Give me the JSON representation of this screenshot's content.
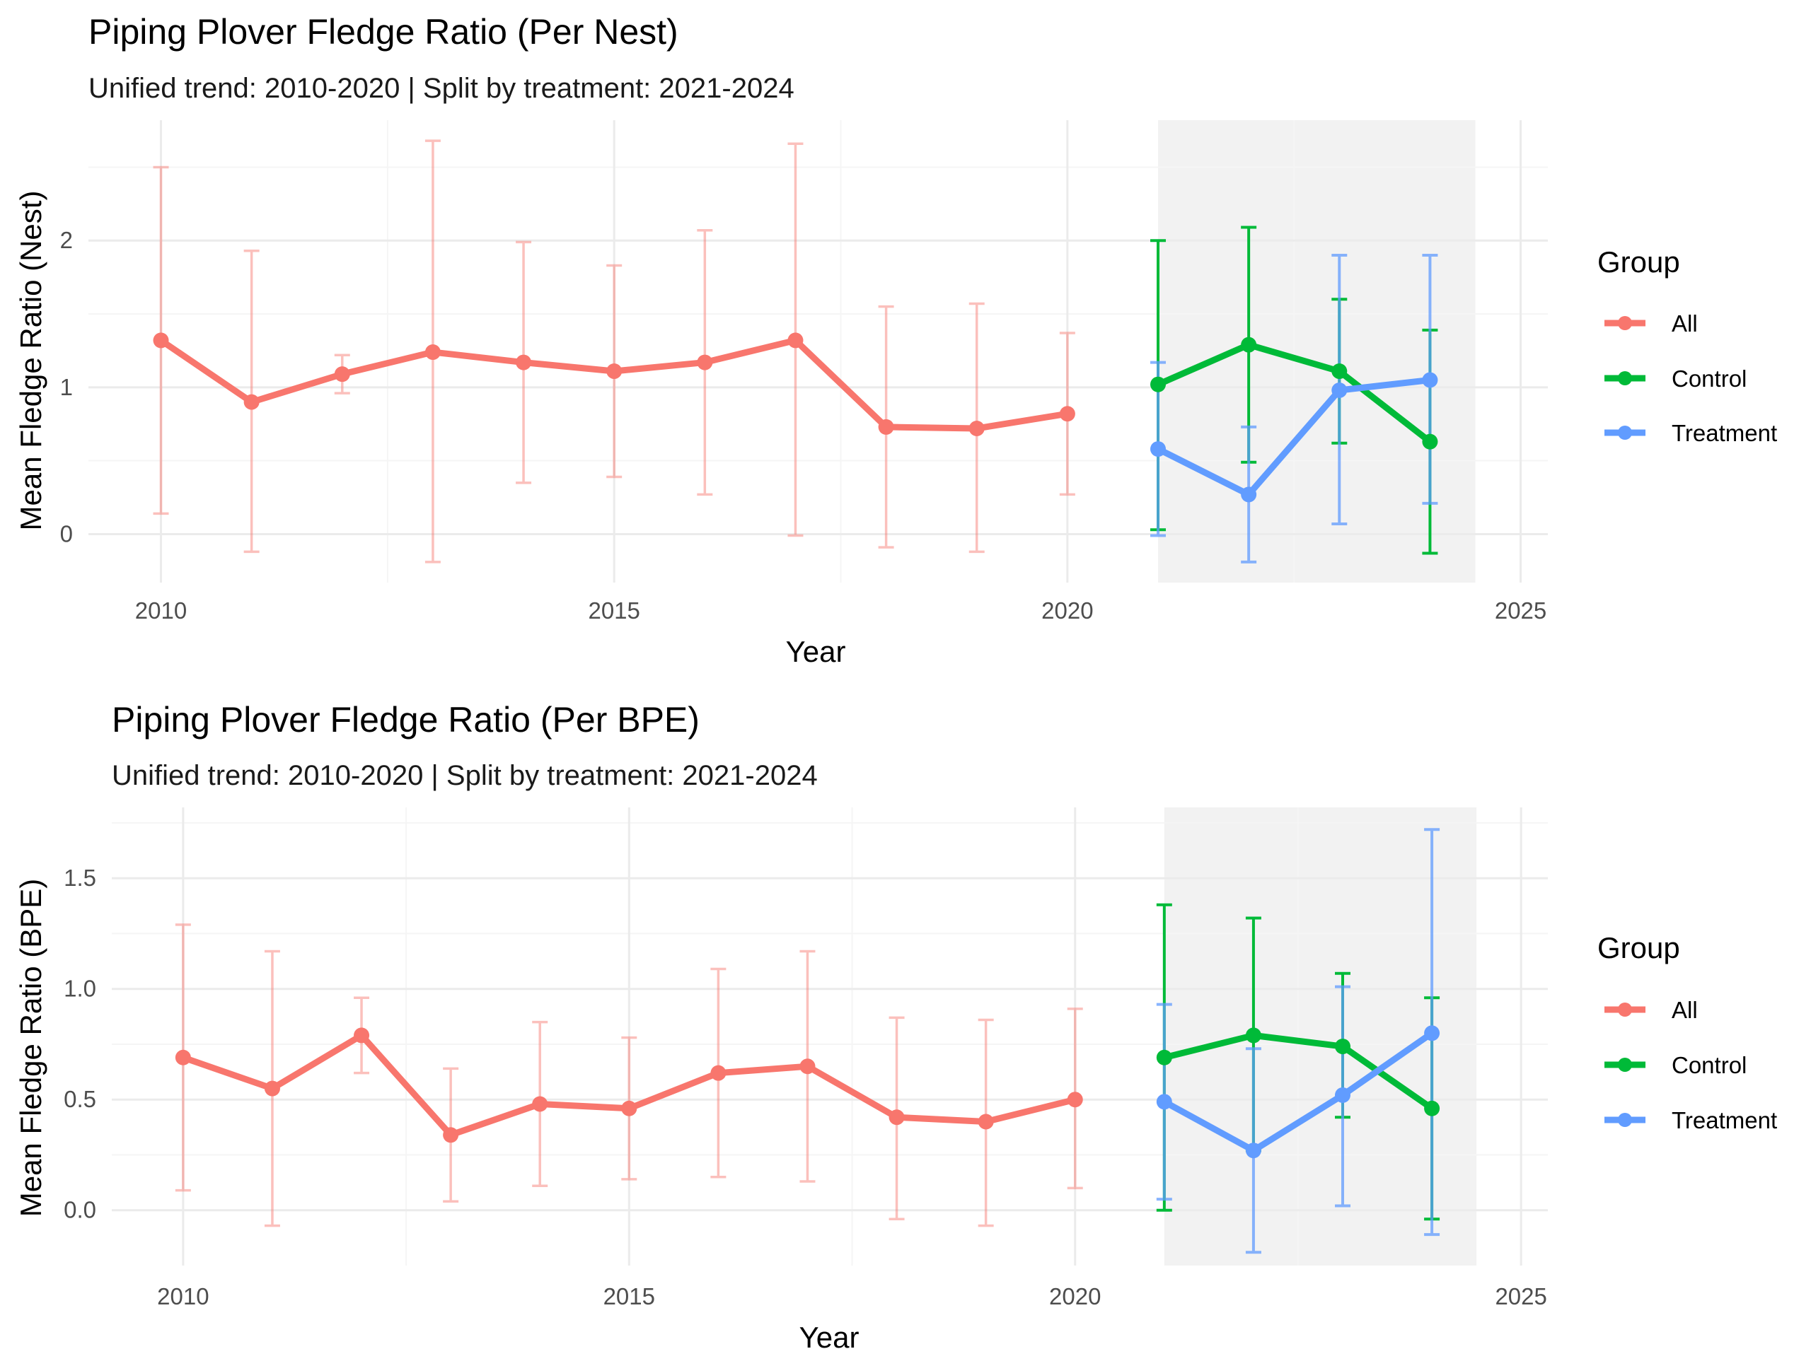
{
  "colors": {
    "All": "#F8766D",
    "Control": "#00BA38",
    "Treatment": "#619CFF",
    "shade": "#f2f2f2",
    "grid_major": "#ebebeb",
    "grid_minor": "#f5f5f5"
  },
  "legend": {
    "title": "Group",
    "items": [
      "All",
      "Control",
      "Treatment"
    ]
  },
  "chart_data": [
    {
      "type": "line",
      "title": "Piping Plover Fledge Ratio (Per Nest)",
      "subtitle": "Unified trend: 2010-2020 | Split by treatment: 2021-2024",
      "xlabel": "Year",
      "ylabel": "Mean Fledge Ratio (Nest)",
      "xlim": [
        2009.2,
        2025.3
      ],
      "ylim": [
        -0.33,
        2.82
      ],
      "x_ticks": [
        2010,
        2015,
        2020,
        2025
      ],
      "y_ticks": [
        0,
        1,
        2
      ],
      "y_tick_labels": [
        "0",
        "1",
        "2"
      ],
      "shaded_region": [
        2021,
        2024.5
      ],
      "grid": true,
      "legend_position": "right",
      "series": [
        {
          "name": "All",
          "x": [
            2010,
            2011,
            2012,
            2013,
            2014,
            2015,
            2016,
            2017,
            2018,
            2019,
            2020
          ],
          "y": [
            1.32,
            0.9,
            1.09,
            1.24,
            1.17,
            1.11,
            1.17,
            1.32,
            0.73,
            0.72,
            0.82
          ],
          "ymin": [
            0.14,
            -0.12,
            0.96,
            -0.19,
            0.35,
            0.39,
            0.27,
            -0.01,
            -0.09,
            -0.12,
            0.27
          ],
          "ymax": [
            2.5,
            1.93,
            1.22,
            2.68,
            1.99,
            1.83,
            2.07,
            2.66,
            1.55,
            1.57,
            1.37
          ]
        },
        {
          "name": "Control",
          "x": [
            2021,
            2022,
            2023,
            2024
          ],
          "y": [
            1.02,
            1.29,
            1.11,
            0.63
          ],
          "ymin": [
            0.03,
            0.49,
            0.62,
            -0.13
          ],
          "ymax": [
            2.0,
            2.09,
            1.6,
            1.39
          ]
        },
        {
          "name": "Treatment",
          "x": [
            2021,
            2022,
            2023,
            2024
          ],
          "y": [
            0.58,
            0.27,
            0.98,
            1.05
          ],
          "ymin": [
            -0.01,
            -0.19,
            0.07,
            0.21
          ],
          "ymax": [
            1.17,
            0.73,
            1.9,
            1.9
          ]
        }
      ]
    },
    {
      "type": "line",
      "title": "Piping Plover Fledge Ratio (Per BPE)",
      "subtitle": "Unified trend: 2010-2020 | Split by treatment: 2021-2024",
      "xlabel": "Year",
      "ylabel": "Mean Fledge Ratio (BPE)",
      "xlim": [
        2009.2,
        2025.3
      ],
      "ylim": [
        -0.25,
        1.82
      ],
      "x_ticks": [
        2010,
        2015,
        2020,
        2025
      ],
      "y_ticks": [
        0,
        0.5,
        1.0,
        1.5
      ],
      "y_tick_labels": [
        "0.0",
        "0.5",
        "1.0",
        "1.5"
      ],
      "shaded_region": [
        2021,
        2024.5
      ],
      "grid": true,
      "legend_position": "right",
      "series": [
        {
          "name": "All",
          "x": [
            2010,
            2011,
            2012,
            2013,
            2014,
            2015,
            2016,
            2017,
            2018,
            2019,
            2020
          ],
          "y": [
            0.69,
            0.55,
            0.79,
            0.34,
            0.48,
            0.46,
            0.62,
            0.65,
            0.42,
            0.4,
            0.5
          ],
          "ymin": [
            0.09,
            -0.07,
            0.62,
            0.04,
            0.11,
            0.14,
            0.15,
            0.13,
            -0.04,
            -0.07,
            0.1
          ],
          "ymax": [
            1.29,
            1.17,
            0.96,
            0.64,
            0.85,
            0.78,
            1.09,
            1.17,
            0.87,
            0.86,
            0.91
          ]
        },
        {
          "name": "Control",
          "x": [
            2021,
            2022,
            2023,
            2024
          ],
          "y": [
            0.69,
            0.79,
            0.74,
            0.46
          ],
          "ymin": [
            0.0,
            0.27,
            0.42,
            -0.04
          ],
          "ymax": [
            1.38,
            1.32,
            1.07,
            0.96
          ]
        },
        {
          "name": "Treatment",
          "x": [
            2021,
            2022,
            2023,
            2024
          ],
          "y": [
            0.49,
            0.27,
            0.52,
            0.8
          ],
          "ymin": [
            0.05,
            -0.19,
            0.02,
            -0.11
          ],
          "ymax": [
            0.93,
            0.73,
            1.01,
            1.72
          ]
        }
      ]
    }
  ]
}
